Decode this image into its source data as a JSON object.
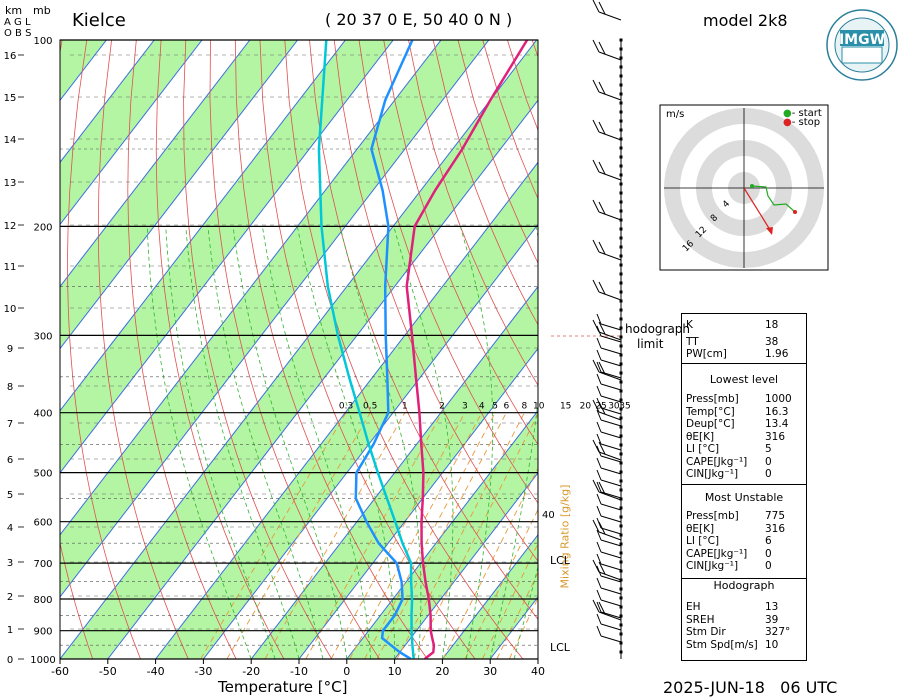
{
  "header": {
    "station": "Kielce",
    "coords": "( 20 37 0 E, 50 40 0 N )",
    "model": "model 2k8",
    "datetime": "2025-JUN-18   06 UTC",
    "logo_text": "IMGW"
  },
  "axes": {
    "left_unit_km": "km",
    "left_unit_mb": "mb",
    "left_labels": [
      "A G L",
      "O B S"
    ],
    "x_title": "Temperature [°C]",
    "mixing_ratio_title": "Mixing Ratio [g/kg]",
    "x_ticks": [
      "-60",
      "-50",
      "-40",
      "-30",
      "-20",
      "-10",
      "0",
      "10",
      "20",
      "30",
      "40"
    ],
    "km_ticks": [
      "0",
      "1",
      "2",
      "3",
      "4",
      "5",
      "6",
      "7",
      "8",
      "9",
      "10",
      "11",
      "12",
      "13",
      "14",
      "15",
      "16"
    ],
    "p_ticks": [
      "1000",
      "900",
      "800",
      "700",
      "600",
      "500",
      "400",
      "300",
      "200",
      "100"
    ],
    "mixing_labels": [
      "0.3",
      "0.5",
      "1",
      "2",
      "3",
      "4",
      "5",
      "6",
      "8",
      "10",
      "15",
      "20",
      "25",
      "30",
      "35"
    ],
    "marker_40": "40",
    "lcl_label": "LCL",
    "hodograph_limit": [
      "hodograph",
      "limit"
    ]
  },
  "hodograph_panel": {
    "unit": "m/s",
    "legend_start": "- start",
    "legend_stop": "- stop",
    "ring_labels": [
      "4",
      "8",
      "12",
      "16"
    ]
  },
  "indices_panel": {
    "top": [
      {
        "label": "K",
        "value": "18"
      },
      {
        "label": "TT",
        "value": "38"
      },
      {
        "label": "PW[cm]",
        "value": "1.96"
      }
    ],
    "lowest_title": "Lowest level",
    "lowest": [
      {
        "label": "Press[mb]",
        "value": "1000"
      },
      {
        "label": "Temp[°C]",
        "value": "16.3"
      },
      {
        "label": "Deup[°C]",
        "value": "13.4"
      },
      {
        "label": "θE[K]",
        "value": "316"
      },
      {
        "label": "LI [°C]",
        "value": "5"
      },
      {
        "label": "CAPE[Jkg⁻¹]",
        "value": "0"
      },
      {
        "label": "CIN[Jkg⁻¹]",
        "value": "0"
      }
    ],
    "unstable_title": "Most Unstable",
    "unstable": [
      {
        "label": "Press[mb]",
        "value": "775"
      },
      {
        "label": "θE[K]",
        "value": "316"
      },
      {
        "label": "LI [°C]",
        "value": "6"
      },
      {
        "label": "CAPE[Jkg⁻¹]",
        "value": "0"
      },
      {
        "label": "CIN[Jkg⁻¹]",
        "value": "0"
      }
    ],
    "hodo_title": "Hodograph",
    "hodo": [
      {
        "label": "EH",
        "value": "13"
      },
      {
        "label": "SREH",
        "value": "39"
      },
      {
        "label": "Stm Dir",
        "value": "327°"
      },
      {
        "label": "Stm Spd[m/s]",
        "value": "10"
      }
    ]
  },
  "colors": {
    "green_band": "#b3f5a3",
    "isotherm": "#3a6fe0",
    "dry_adiabat": "#e05050",
    "moist_adiabat": "#2fb52f",
    "mixing_ratio": "#e89a3a",
    "temperature": "#e0207a",
    "dewpoint": "#1e90ff",
    "parcel": "#00c8d8"
  },
  "chart_data": {
    "type": "line",
    "title": "",
    "xlabel": "Temperature [°C]",
    "ylabel": "mb",
    "xlim": [
      -60,
      40
    ],
    "ylim": [
      1000,
      100
    ],
    "series": [
      {
        "name": "",
        "points": [
          [
            1000,
            16.3
          ],
          [
            975,
            17.0
          ],
          [
            950,
            16.0
          ],
          [
            925,
            14.5
          ],
          [
            900,
            13.0
          ],
          [
            850,
            10.5
          ],
          [
            800,
            7.5
          ],
          [
            750,
            4.0
          ],
          [
            700,
            0.5
          ],
          [
            650,
            -3.0
          ],
          [
            600,
            -6.5
          ],
          [
            550,
            -10.0
          ],
          [
            500,
            -14.0
          ],
          [
            450,
            -19.0
          ],
          [
            400,
            -24.5
          ],
          [
            350,
            -31.0
          ],
          [
            300,
            -38.5
          ],
          [
            250,
            -47.5
          ],
          [
            200,
            -55.5
          ],
          [
            175,
            -57.0
          ],
          [
            150,
            -58.0
          ],
          [
            125,
            -60.0
          ],
          [
            100,
            -62.0
          ]
        ]
      },
      {
        "name": "",
        "points": [
          [
            1000,
            13.4
          ],
          [
            975,
            10.0
          ],
          [
            950,
            7.0
          ],
          [
            925,
            4.0
          ],
          [
            900,
            3.0
          ],
          [
            850,
            3.0
          ],
          [
            800,
            2.0
          ],
          [
            750,
            -1.0
          ],
          [
            700,
            -5.0
          ],
          [
            650,
            -12.0
          ],
          [
            600,
            -18.0
          ],
          [
            550,
            -24.0
          ],
          [
            500,
            -28.0
          ],
          [
            450,
            -29.0
          ],
          [
            400,
            -31.0
          ],
          [
            350,
            -37.0
          ],
          [
            300,
            -44.0
          ],
          [
            250,
            -52.0
          ],
          [
            200,
            -61.0
          ],
          [
            175,
            -68.0
          ],
          [
            150,
            -77.0
          ],
          [
            125,
            -82.0
          ],
          [
            100,
            -86.0
          ]
        ]
      },
      {
        "name": "",
        "points": [
          [
            1000,
            14.0
          ],
          [
            950,
            11.5
          ],
          [
            900,
            9.0
          ],
          [
            850,
            6.5
          ],
          [
            800,
            4.0
          ],
          [
            750,
            1.0
          ],
          [
            700,
            -2.0
          ],
          [
            650,
            -7.0
          ],
          [
            600,
            -12.0
          ],
          [
            550,
            -17.5
          ],
          [
            500,
            -23.5
          ],
          [
            450,
            -30.0
          ],
          [
            400,
            -37.0
          ],
          [
            350,
            -45.0
          ],
          [
            300,
            -54.0
          ],
          [
            250,
            -64.0
          ],
          [
            200,
            -75.0
          ],
          [
            150,
            -88.0
          ],
          [
            100,
            -104.0
          ]
        ]
      }
    ]
  }
}
